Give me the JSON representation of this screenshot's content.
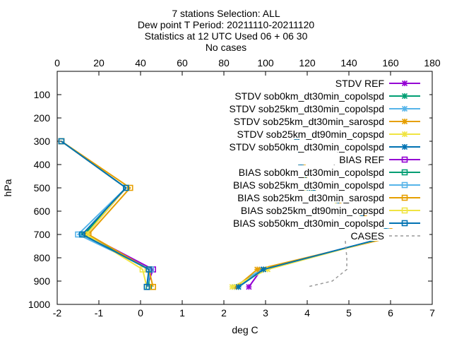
{
  "title_lines": [
    "7 stations Selection: ALL",
    "Dew point T  Period: 20211110-20211120",
    "Statistics at 12 UTC  Used 06 + 06 30",
    "No cases"
  ],
  "chart_data": {
    "type": "line",
    "xlabel": "deg C",
    "ylabel": "hPa",
    "xlim": [
      -2,
      7
    ],
    "ylim": [
      1000,
      0
    ],
    "x2lim": [
      0,
      180
    ],
    "x_ticks": [
      -2,
      -1,
      0,
      1,
      2,
      3,
      4,
      5,
      6,
      7
    ],
    "x2_ticks": [
      0,
      20,
      40,
      60,
      80,
      100,
      120,
      140,
      160,
      180
    ],
    "y_ticks": [
      100,
      200,
      300,
      400,
      500,
      600,
      700,
      800,
      900,
      1000
    ],
    "legend_position": "top-right",
    "series": [
      {
        "name": "STDV REF",
        "color": "#9400d3",
        "marker": "x",
        "style": "solid",
        "points": [
          [
            3.75,
            300
          ],
          [
            3.85,
            400
          ],
          [
            4.05,
            500
          ],
          [
            6.2,
            700
          ],
          [
            2.9,
            850
          ],
          [
            2.6,
            925
          ]
        ]
      },
      {
        "name": "STDV sob0km_dt30min_copolspd",
        "color": "#009e73",
        "marker": "x",
        "style": "solid",
        "points": [
          [
            3.75,
            300
          ],
          [
            3.85,
            400
          ],
          [
            4.05,
            500
          ],
          [
            6.2,
            700
          ],
          [
            2.95,
            850
          ],
          [
            2.35,
            925
          ]
        ]
      },
      {
        "name": "STDV sob25km_dt30min_copolspd",
        "color": "#56b4e9",
        "marker": "x",
        "style": "solid",
        "points": [
          [
            3.75,
            300
          ],
          [
            3.85,
            400
          ],
          [
            4.0,
            500
          ],
          [
            6.2,
            700
          ],
          [
            2.9,
            850
          ],
          [
            2.25,
            925
          ]
        ]
      },
      {
        "name": "STDV sob25km_dt30min_sarospd",
        "color": "#e69f00",
        "marker": "x",
        "style": "solid",
        "points": [
          [
            3.75,
            300
          ],
          [
            3.9,
            400
          ],
          [
            4.05,
            500
          ],
          [
            6.3,
            700
          ],
          [
            2.8,
            850
          ],
          [
            2.3,
            925
          ]
        ]
      },
      {
        "name": "STDV sob25km_dt90min_copspd",
        "color": "#f0e442",
        "marker": "x",
        "style": "solid",
        "points": [
          [
            3.75,
            300
          ],
          [
            3.85,
            400
          ],
          [
            4.0,
            500
          ],
          [
            6.15,
            700
          ],
          [
            3.05,
            850
          ],
          [
            2.2,
            925
          ]
        ]
      },
      {
        "name": "STDV sob50km_dt30min_copolspd",
        "color": "#0072b2",
        "marker": "x",
        "style": "solid",
        "points": [
          [
            3.75,
            300
          ],
          [
            3.85,
            400
          ],
          [
            4.05,
            500
          ],
          [
            6.15,
            700
          ],
          [
            2.95,
            850
          ],
          [
            2.35,
            925
          ]
        ]
      },
      {
        "name": "BIAS REF",
        "color": "#9400d3",
        "marker": "square",
        "style": "solid",
        "points": [
          [
            -1.9,
            300
          ],
          [
            -0.35,
            500
          ],
          [
            -1.3,
            700
          ],
          [
            0.3,
            850
          ],
          [
            0.15,
            925
          ]
        ]
      },
      {
        "name": "BIAS sob0km_dt30min_copolspd",
        "color": "#009e73",
        "marker": "square",
        "style": "solid",
        "points": [
          [
            -1.9,
            300
          ],
          [
            -0.35,
            500
          ],
          [
            -1.35,
            700
          ],
          [
            0.2,
            850
          ],
          [
            0.2,
            925
          ]
        ]
      },
      {
        "name": "BIAS sob25km_dt30min_copolspd",
        "color": "#56b4e9",
        "marker": "square",
        "style": "solid",
        "points": [
          [
            -1.9,
            300
          ],
          [
            -0.35,
            500
          ],
          [
            -1.5,
            700
          ],
          [
            0.25,
            850
          ],
          [
            0.15,
            925
          ]
        ]
      },
      {
        "name": "BIAS sob25km_dt30min_sarospd",
        "color": "#e69f00",
        "marker": "square",
        "style": "solid",
        "points": [
          [
            -1.9,
            300
          ],
          [
            -0.25,
            500
          ],
          [
            -1.25,
            700
          ],
          [
            0.2,
            850
          ],
          [
            0.3,
            925
          ]
        ]
      },
      {
        "name": "BIAS sob25km_dt90min_copspd",
        "color": "#f0e442",
        "marker": "square",
        "style": "solid",
        "points": [
          [
            -1.9,
            300
          ],
          [
            -0.35,
            500
          ],
          [
            -1.3,
            700
          ],
          [
            0.05,
            850
          ],
          [
            0.15,
            925
          ]
        ]
      },
      {
        "name": "BIAS sob50km_dt30min_copolspd",
        "color": "#0072b2",
        "marker": "square",
        "style": "solid",
        "points": [
          [
            -1.9,
            300
          ],
          [
            -0.35,
            500
          ],
          [
            -1.4,
            700
          ],
          [
            0.2,
            850
          ],
          [
            0.15,
            925
          ]
        ]
      },
      {
        "name": "CASES",
        "color": "#999999",
        "marker": "none",
        "style": "dashed",
        "axis": "x2",
        "points": [
          [
            136,
            300
          ],
          [
            133,
            400
          ],
          [
            133,
            500
          ],
          [
            135,
            600
          ],
          [
            138,
            700
          ],
          [
            139,
            800
          ],
          [
            139,
            850
          ],
          [
            132,
            900
          ],
          [
            120,
            925
          ]
        ]
      }
    ]
  }
}
